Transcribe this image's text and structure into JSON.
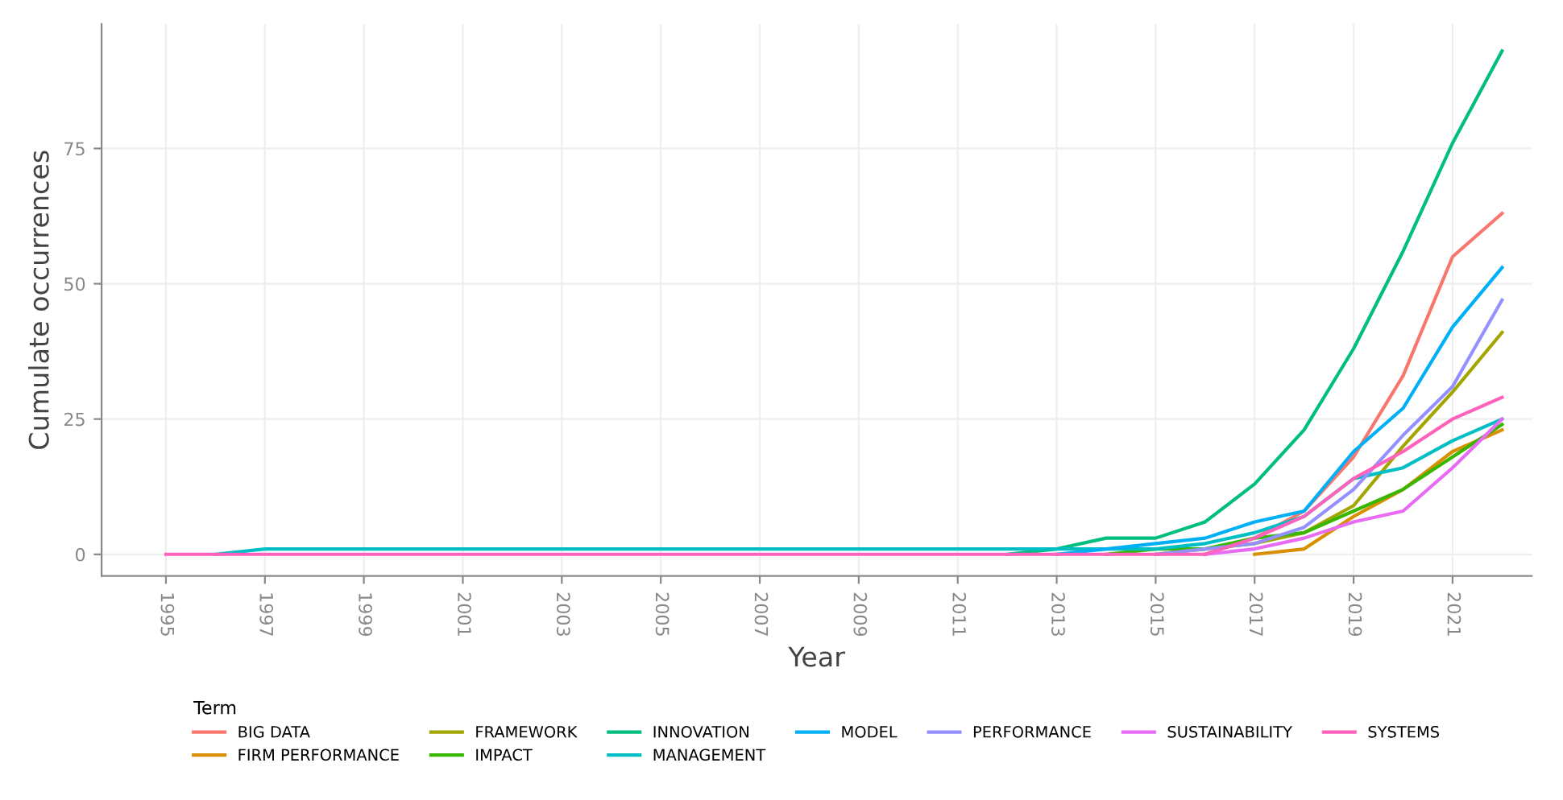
{
  "chart_data": {
    "type": "line",
    "xlabel": "Year",
    "ylabel": "Cumulate occurrences",
    "legend_title": "Term",
    "legend": "bottom",
    "grid": true,
    "marker": "none",
    "line_style": "solid",
    "x": [
      1995,
      1996,
      1997,
      1998,
      1999,
      2000,
      2001,
      2002,
      2003,
      2004,
      2005,
      2006,
      2007,
      2008,
      2009,
      2010,
      2011,
      2012,
      2013,
      2014,
      2015,
      2016,
      2017,
      2018,
      2019,
      2020,
      2021,
      2022
    ],
    "xlim": [
      1993.7,
      2022.6
    ],
    "xticks": [
      1995,
      1997,
      1999,
      2001,
      2003,
      2005,
      2007,
      2009,
      2011,
      2013,
      2015,
      2017,
      2019,
      2021
    ],
    "ylim": [
      -4,
      98
    ],
    "yticks": [
      0,
      25,
      50,
      75
    ],
    "series": [
      {
        "name": "BIG DATA",
        "color": "#f8766d",
        "values": [
          null,
          null,
          null,
          null,
          null,
          null,
          null,
          null,
          null,
          null,
          null,
          null,
          null,
          null,
          null,
          null,
          null,
          null,
          null,
          null,
          null,
          0,
          3,
          8,
          18,
          33,
          55,
          63
        ]
      },
      {
        "name": "FIRM PERFORMANCE",
        "color": "#d89000",
        "values": [
          null,
          null,
          null,
          null,
          null,
          null,
          null,
          null,
          null,
          null,
          null,
          null,
          null,
          null,
          null,
          null,
          null,
          null,
          null,
          null,
          null,
          null,
          0,
          1,
          7,
          12,
          19,
          23
        ]
      },
      {
        "name": "FRAMEWORK",
        "color": "#a3a500",
        "values": [
          null,
          null,
          null,
          null,
          null,
          null,
          null,
          null,
          null,
          null,
          null,
          null,
          null,
          null,
          null,
          null,
          null,
          null,
          null,
          null,
          0,
          1,
          2,
          4,
          9,
          20,
          30,
          41
        ]
      },
      {
        "name": "IMPACT",
        "color": "#39b600",
        "values": [
          null,
          null,
          null,
          null,
          null,
          null,
          null,
          null,
          null,
          null,
          null,
          null,
          null,
          null,
          null,
          null,
          null,
          null,
          null,
          0,
          1,
          1,
          3,
          4,
          8,
          12,
          18,
          24
        ]
      },
      {
        "name": "INNOVATION",
        "color": "#00bf7d",
        "values": [
          null,
          null,
          null,
          null,
          null,
          null,
          null,
          null,
          null,
          null,
          null,
          null,
          null,
          null,
          null,
          null,
          null,
          0,
          1,
          3,
          3,
          6,
          13,
          23,
          38,
          56,
          76,
          93
        ]
      },
      {
        "name": "MANAGEMENT",
        "color": "#00bfc4",
        "values": [
          null,
          0,
          1,
          1,
          1,
          1,
          1,
          1,
          1,
          1,
          1,
          1,
          1,
          1,
          1,
          1,
          1,
          1,
          1,
          1,
          1,
          2,
          4,
          7,
          14,
          16,
          21,
          25
        ]
      },
      {
        "name": "MODEL",
        "color": "#00b0f6",
        "values": [
          null,
          null,
          null,
          null,
          null,
          null,
          null,
          null,
          null,
          null,
          null,
          null,
          null,
          null,
          null,
          null,
          null,
          null,
          0,
          1,
          2,
          3,
          6,
          8,
          19,
          27,
          42,
          53
        ]
      },
      {
        "name": "PERFORMANCE",
        "color": "#9590ff",
        "values": [
          null,
          null,
          null,
          null,
          null,
          null,
          null,
          null,
          null,
          null,
          null,
          null,
          null,
          null,
          null,
          null,
          null,
          null,
          null,
          null,
          0,
          1,
          2,
          5,
          12,
          22,
          31,
          47
        ]
      },
      {
        "name": "SUSTAINABILITY",
        "color": "#e76bf3",
        "values": [
          null,
          null,
          null,
          null,
          null,
          null,
          null,
          null,
          null,
          null,
          null,
          null,
          null,
          null,
          null,
          null,
          null,
          null,
          null,
          null,
          null,
          0,
          1,
          3,
          6,
          8,
          16,
          25
        ]
      },
      {
        "name": "SYSTEMS",
        "color": "#ff62bc",
        "values": [
          0,
          0,
          0,
          0,
          0,
          0,
          0,
          0,
          0,
          0,
          0,
          0,
          0,
          0,
          0,
          0,
          0,
          0,
          0,
          0,
          0,
          0,
          3,
          7,
          14,
          19,
          25,
          29
        ]
      }
    ]
  }
}
